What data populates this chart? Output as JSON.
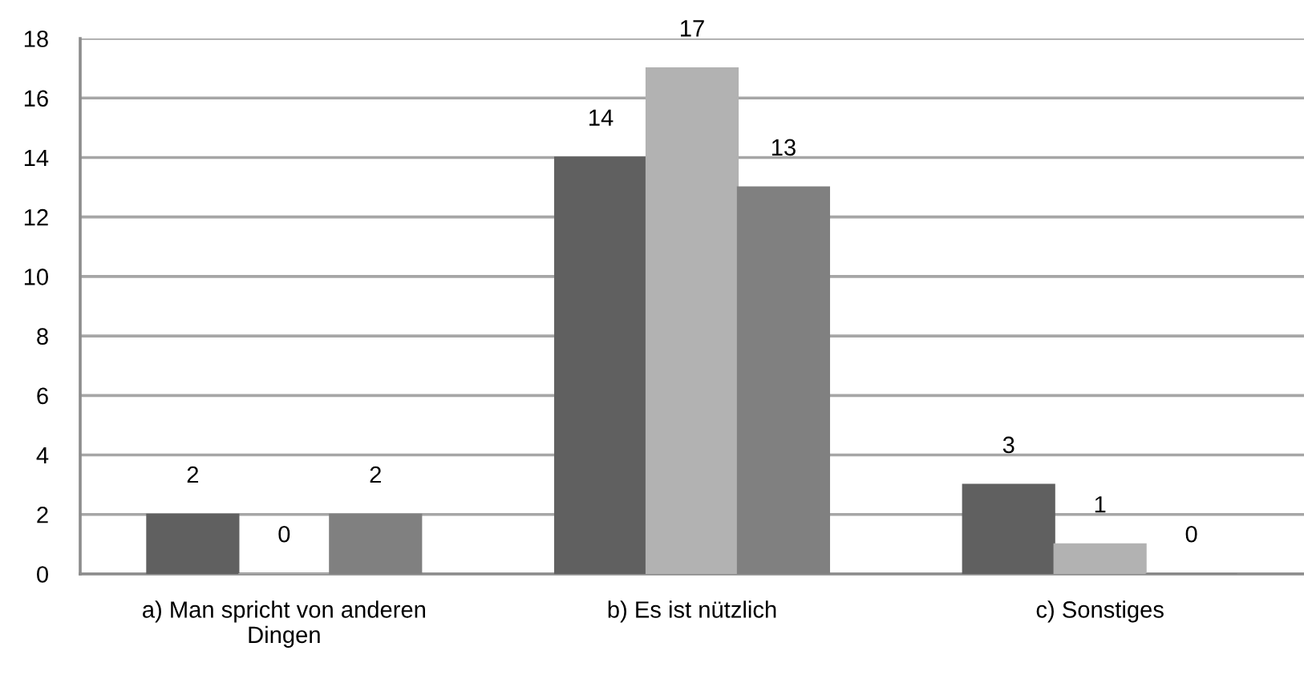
{
  "chart_data": {
    "type": "bar",
    "categories": [
      "a) Man spricht von anderen\nDingen",
      "b) Es ist nützlich",
      "c) Sonstiges"
    ],
    "series": [
      {
        "color": "#606060",
        "values": [
          2,
          14,
          3
        ]
      },
      {
        "color": "#b2b2b2",
        "values": [
          0,
          17,
          1
        ]
      },
      {
        "color": "#808080",
        "values": [
          2,
          13,
          0
        ]
      }
    ],
    "ylim": [
      0,
      18
    ],
    "yticks": [
      0,
      2,
      4,
      6,
      8,
      10,
      12,
      14,
      16,
      18
    ],
    "grid": "y",
    "data_labels": true
  }
}
